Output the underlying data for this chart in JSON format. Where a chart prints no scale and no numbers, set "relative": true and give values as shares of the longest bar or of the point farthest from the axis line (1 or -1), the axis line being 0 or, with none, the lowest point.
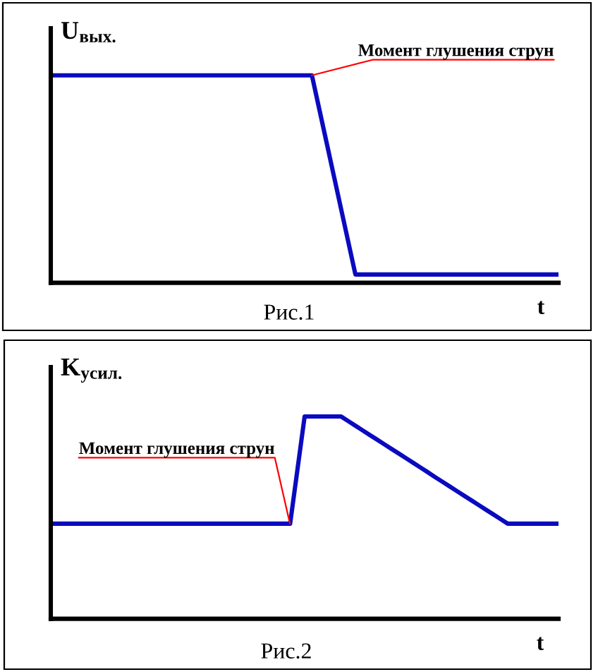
{
  "chart_data": [
    {
      "type": "line",
      "relative": true,
      "ylabel": "U$_{вых.}$",
      "xlabel": "t",
      "categories": [
        null,
        null,
        null,
        null,
        null,
        null,
        null,
        null,
        null,
        null,
        null,
        null,
        null,
        null,
        null,
        null,
        null,
        null,
        null,
        null,
        null,
        null,
        null,
        null,
        null,
        null,
        null,
        null,
        null,
        null,
        null,
        null,
        null,
        null,
        null,
        null,
        null,
        null,
        null,
        null,
        null,
        null,
        null,
        null,
        null,
        null,
        null,
        null,
        null,
        null,
        null,
        null,
        null,
        null,
        null,
        null,
        null,
        null,
        null,
        null,
        null,
        null,
        null,
        null,
        null,
        null,
        null,
        null,
        null,
        null,
        null
      ],
      "series": [
        {
          "color": "#0a0ac0",
          "values": [
            1,
            1,
            1,
            1,
            1,
            1,
            1,
            1,
            1,
            1,
            1,
            1,
            1,
            1,
            1,
            1,
            1,
            1,
            1,
            1,
            1,
            1,
            1,
            1,
            1,
            1,
            1,
            1,
            1,
            1,
            1,
            1,
            1,
            1,
            1,
            1,
            1,
            0.84,
            0.68,
            0.52,
            0.36,
            0.2,
            0.04,
            0.04,
            0.04,
            0.04,
            0.04,
            0.04,
            0.04,
            0.04,
            0.04,
            0.04,
            0.04,
            0.04,
            0.04,
            0.04,
            0.04,
            0.04,
            0.04,
            0.04,
            0.04,
            0.04,
            0.04,
            0.04,
            0.04,
            0.04,
            0.04,
            0.04,
            0.04,
            0.04,
            0.04
          ]
        }
      ],
      "annotations": [
        "Момент глушения струн",
        "Рис.1"
      ]
    },
    {
      "type": "line",
      "relative": true,
      "ylabel": "K$_{усил.}$",
      "xlabel": "t",
      "categories": [
        null,
        null,
        null,
        null,
        null,
        null,
        null,
        null,
        null,
        null,
        null,
        null,
        null,
        null,
        null,
        null,
        null,
        null,
        null,
        null,
        null,
        null,
        null,
        null,
        null,
        null,
        null,
        null,
        null,
        null,
        null,
        null,
        null,
        null,
        null,
        null,
        null,
        null,
        null,
        null,
        null,
        null,
        null,
        null,
        null,
        null,
        null,
        null,
        null,
        null,
        null,
        null,
        null,
        null,
        null,
        null,
        null,
        null,
        null,
        null,
        null,
        null,
        null,
        null,
        null,
        null,
        null,
        null,
        null,
        null,
        null
      ],
      "series": [
        {
          "color": "#0a0ac0",
          "values": [
            0.47,
            0.47,
            0.47,
            0.47,
            0.47,
            0.47,
            0.47,
            0.47,
            0.47,
            0.47,
            0.47,
            0.47,
            0.47,
            0.47,
            0.47,
            0.47,
            0.47,
            0.47,
            0.47,
            0.47,
            0.47,
            0.47,
            0.47,
            0.47,
            0.47,
            0.47,
            0.47,
            0.47,
            0.47,
            0.47,
            0.47,
            0.47,
            0.47,
            0.47,
            0.735,
            1,
            1,
            1,
            1,
            1,
            1,
            0.977,
            0.954,
            0.931,
            0.908,
            0.885,
            0.862,
            0.839,
            0.816,
            0.793,
            0.77,
            0.747,
            0.724,
            0.7,
            0.677,
            0.654,
            0.631,
            0.608,
            0.585,
            0.562,
            0.539,
            0.516,
            0.493,
            0.47,
            0.47,
            0.47,
            0.47,
            0.47,
            0.47,
            0.47,
            0.47
          ]
        }
      ],
      "annotations": [
        "Момент глушения струн",
        "Рис.2"
      ]
    }
  ]
}
